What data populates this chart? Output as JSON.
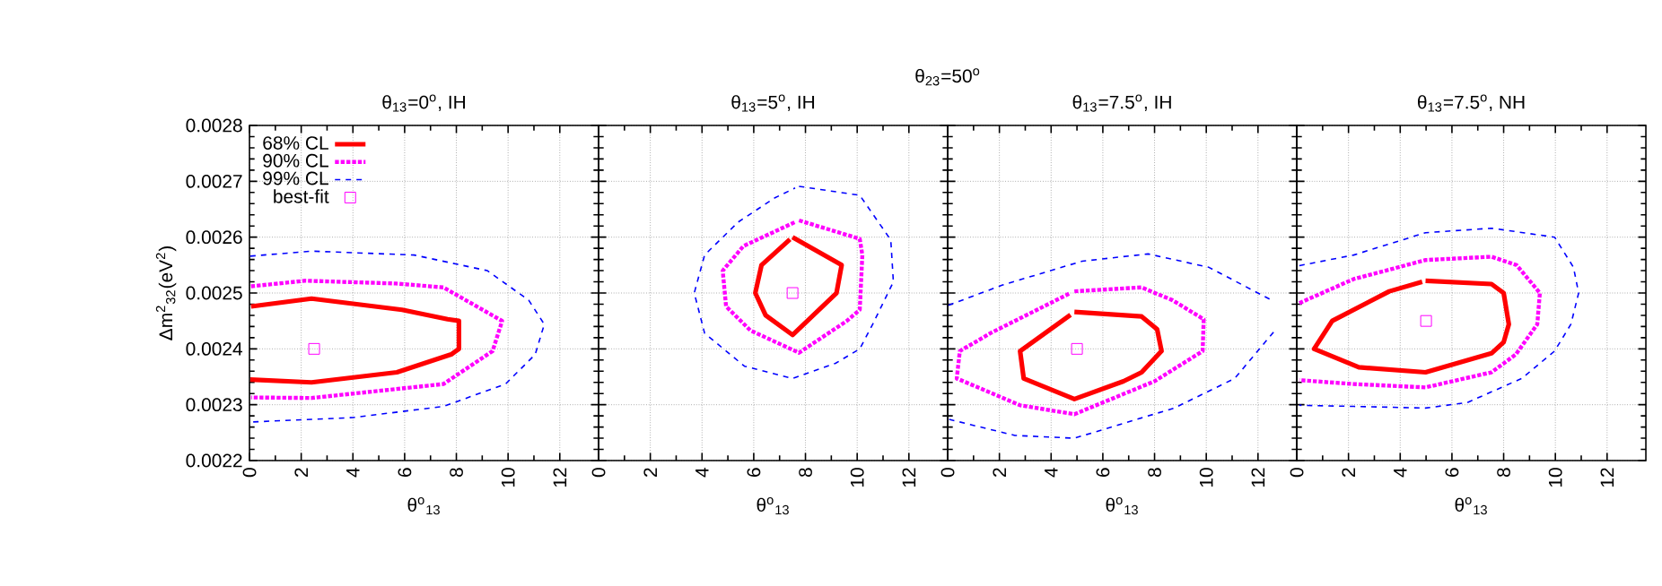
{
  "chart_data": [
    {
      "type": "line",
      "title": "θ$_{13}$=0$^{o}$, IH",
      "annotations": [
        "θ$_{23}$=50$^{o}$"
      ],
      "xlabel": "θ$^{o}$$_{13}$",
      "ylabel": "Δm$^{2}$$_{32}$(eV$^{2}$)",
      "xlim": [
        0,
        13.5
      ],
      "ylim": [
        0.0022,
        0.0028
      ],
      "xticks": [
        0,
        2,
        4,
        6,
        8,
        10,
        12
      ],
      "yticks": [
        0.0022,
        0.0023,
        0.0024,
        0.0025,
        0.0026,
        0.0027,
        0.0028
      ],
      "grid": true,
      "legend": "top left",
      "series": [
        {
          "name": "68% CL",
          "color": "#ff0000",
          "line_style": "solid",
          "x": [
            0.06,
            2.4,
            5.9,
            7.66,
            8.1,
            8.1,
            7.8,
            5.7,
            2.4,
            0.03
          ],
          "values": [
            0.002476,
            0.00249,
            0.00247,
            0.002453,
            0.00245,
            0.0024,
            0.00239,
            0.002358,
            0.00234,
            0.002345
          ]
        },
        {
          "name": "90% CL",
          "color": "#ff00ff",
          "line_style": "dotted",
          "x": [
            0.06,
            2.16,
            5.67,
            7.5,
            9.77,
            9.4,
            7.5,
            2.4,
            0.06
          ],
          "values": [
            0.002512,
            0.002522,
            0.002517,
            0.00251,
            0.00245,
            0.002396,
            0.002337,
            0.002312,
            0.002313
          ]
        },
        {
          "name": "99% CL",
          "color": "#0000ff",
          "line_style": "dashed",
          "x": [
            0.03,
            2.4,
            6.37,
            9.2,
            10.8,
            11.4,
            11.05,
            9.9,
            7.5,
            4.0,
            0.03
          ],
          "values": [
            0.002566,
            0.002575,
            0.002568,
            0.00254,
            0.002487,
            0.002444,
            0.00239,
            0.002337,
            0.002297,
            0.002277,
            0.002269
          ]
        },
        {
          "name": "best-fit",
          "type": "scatter",
          "marker": "square",
          "color": "#ff00ff",
          "x": [
            2.5
          ],
          "values": [
            0.0024
          ]
        }
      ]
    },
    {
      "type": "line",
      "title": "θ$_{13}$=5$^{o}$, IH",
      "xlabel": "θ$^{o}$$_{13}$",
      "xlim": [
        0,
        13.5
      ],
      "ylim": [
        0.0022,
        0.0028
      ],
      "xticks": [
        0,
        2,
        4,
        6,
        8,
        10,
        12
      ],
      "yticks": [
        0.0022,
        0.0023,
        0.0024,
        0.0025,
        0.0026,
        0.0027,
        0.0028
      ],
      "grid": true,
      "tick_labels": "x",
      "series": [
        {
          "color": "#ff0000",
          "line_style": "solid",
          "x": [
            7.5,
            9.4,
            9.2,
            7.5,
            6.46,
            6.06,
            6.3,
            7.4
          ],
          "values": [
            0.0026,
            0.00255,
            0.0025,
            0.002425,
            0.00246,
            0.0025,
            0.00255,
            0.002596
          ]
        },
        {
          "color": "#ff00ff",
          "line_style": "dotted",
          "x": [
            7.75,
            10.1,
            10.2,
            10.1,
            9.6,
            7.75,
            5.87,
            4.93,
            4.8,
            5.6,
            7.6
          ],
          "values": [
            0.00263,
            0.002597,
            0.002568,
            0.00247,
            0.00245,
            0.002393,
            0.002433,
            0.002476,
            0.00254,
            0.002584,
            0.002627
          ]
        },
        {
          "color": "#0000ff",
          "line_style": "dashed",
          "x": [
            7.75,
            10.1,
            11.3,
            11.4,
            10.6,
            10.1,
            9.16,
            7.5,
            5.64,
            4.1,
            3.7,
            4.1,
            5.4,
            6.8,
            7.6
          ],
          "values": [
            0.002691,
            0.002675,
            0.002595,
            0.00252,
            0.002444,
            0.0024,
            0.002374,
            0.002347,
            0.002369,
            0.002428,
            0.0025,
            0.002568,
            0.002627,
            0.00267,
            0.002688
          ]
        },
        {
          "type": "scatter",
          "marker": "square",
          "color": "#ff00ff",
          "x": [
            7.5
          ],
          "values": [
            0.0025
          ]
        }
      ]
    },
    {
      "type": "line",
      "title": "θ$_{13}$=7.5$^{o}$, IH",
      "xlabel": "θ$^{o}$$_{13}$",
      "xlim": [
        0,
        13.5
      ],
      "ylim": [
        0.0022,
        0.0028
      ],
      "xticks": [
        0,
        2,
        4,
        6,
        8,
        10,
        12
      ],
      "yticks": [
        0.0022,
        0.0023,
        0.0024,
        0.0025,
        0.0026,
        0.0027,
        0.0028
      ],
      "grid": true,
      "tick_labels": "x",
      "series": [
        {
          "color": "#ff0000",
          "line_style": "solid",
          "x": [
            4.9,
            7.5,
            8.1,
            8.27,
            7.5,
            6.8,
            4.9,
            2.94,
            2.8,
            4.75
          ],
          "values": [
            0.002466,
            0.002458,
            0.002435,
            0.002396,
            0.002358,
            0.002342,
            0.00231,
            0.002347,
            0.002396,
            0.002461
          ]
        },
        {
          "color": "#ff00ff",
          "line_style": "dotted",
          "x": [
            4.9,
            7.5,
            8.7,
            9.9,
            9.86,
            8.0,
            4.9,
            2.8,
            0.35,
            0.47,
            1.65,
            4.75
          ],
          "values": [
            0.002503,
            0.00251,
            0.002487,
            0.002453,
            0.002396,
            0.002342,
            0.002283,
            0.002299,
            0.002347,
            0.002396,
            0.002428,
            0.0025
          ]
        },
        {
          "color": "#0000ff",
          "line_style": "dashed",
          "x": [
            0.03,
            2.1,
            5.2,
            7.75,
            10.1,
            12.45,
            12.5,
            12.6,
            11.1,
            8.76,
            4.9,
            2.6,
            0.03
          ],
          "values": [
            0.002478,
            0.002514,
            0.002557,
            0.00257,
            0.002546,
            0.002489,
            null,
            0.00243,
            0.002347,
            0.002294,
            0.00224,
            0.002245,
            0.002274
          ]
        },
        {
          "type": "scatter",
          "marker": "square",
          "color": "#ff00ff",
          "x": [
            5
          ],
          "values": [
            0.0024
          ]
        }
      ]
    },
    {
      "type": "line",
      "title": "θ$_{13}$=7.5$^{o}$, NH",
      "xlabel": "θ$^{o}$$_{13}$",
      "xlim": [
        0,
        13.5
      ],
      "ylim": [
        0.0022,
        0.0028
      ],
      "xticks": [
        0,
        2,
        4,
        6,
        8,
        10,
        12
      ],
      "yticks": [
        0.0022,
        0.0023,
        0.0024,
        0.0025,
        0.0026,
        0.0027,
        0.0028
      ],
      "grid": true,
      "tick_labels": "x",
      "series": [
        {
          "color": "#ff0000",
          "line_style": "solid",
          "x": [
            4.98,
            7.53,
            8.0,
            8.2,
            8.0,
            7.53,
            4.98,
            2.4,
            0.67,
            1.37,
            3.58,
            4.85
          ],
          "values": [
            0.002522,
            0.002516,
            0.0025,
            0.002444,
            0.002412,
            0.002392,
            0.002358,
            0.002367,
            0.0024,
            0.00245,
            0.002503,
            0.00252
          ]
        },
        {
          "color": "#ff00ff",
          "line_style": "dotted",
          "x": [
            0.1,
            2.2,
            4.98,
            7.53,
            8.5,
            9.4,
            9.3,
            8.47,
            7.53,
            4.98,
            2.2,
            0.1
          ],
          "values": [
            0.002482,
            0.002525,
            0.002559,
            0.002565,
            0.00255,
            0.0025,
            0.002444,
            0.00239,
            0.002358,
            0.002331,
            0.002337,
            0.002344
          ]
        },
        {
          "color": "#0000ff",
          "line_style": "dashed",
          "x": [
            0.1,
            2.2,
            4.98,
            7.53,
            9.97,
            10.7,
            10.9,
            10.6,
            9.97,
            8.7,
            6.6,
            4.98,
            2.2,
            0.1
          ],
          "values": [
            0.002549,
            0.002568,
            0.002608,
            0.002616,
            0.0026,
            0.002546,
            0.0025,
            0.002444,
            0.002396,
            0.002347,
            0.002304,
            0.002294,
            0.002297,
            0.002299
          ]
        },
        {
          "type": "scatter",
          "marker": "square",
          "color": "#ff00ff",
          "x": [
            5
          ],
          "values": [
            0.00245
          ]
        }
      ]
    }
  ]
}
